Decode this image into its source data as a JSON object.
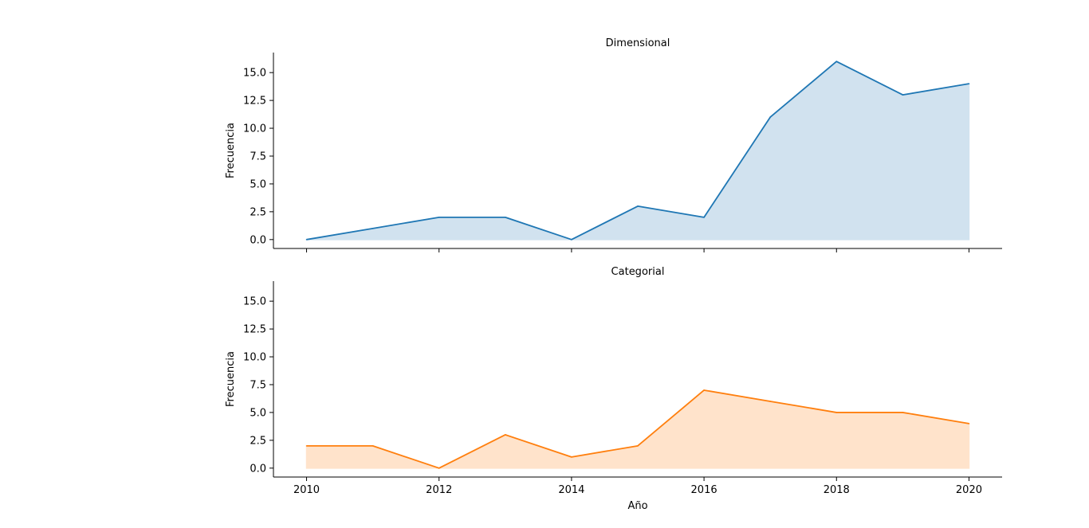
{
  "chart_data": [
    {
      "type": "area",
      "title": "Dimensional",
      "xlabel": "",
      "ylabel": "Frecuencia",
      "x": [
        2010,
        2011,
        2012,
        2013,
        2014,
        2015,
        2016,
        2017,
        2018,
        2019,
        2020
      ],
      "values": [
        0,
        1,
        2,
        2,
        0,
        3,
        2,
        11,
        16,
        13,
        14
      ],
      "xlim": [
        2009.5,
        2020.5
      ],
      "ylim": [
        -0.8,
        16.8
      ],
      "xticks": [
        2010,
        2012,
        2014,
        2016,
        2018,
        2020
      ],
      "xtick_labels_visible": false,
      "yticks": [
        0.0,
        2.5,
        5.0,
        7.5,
        10.0,
        12.5,
        15.0
      ],
      "ytick_labels": [
        "0.0",
        "2.5",
        "5.0",
        "7.5",
        "10.0",
        "12.5",
        "15.0"
      ],
      "color": "#1f77b4",
      "fill_color": "#d1e2ef",
      "grid": false,
      "spines": "left-bottom"
    },
    {
      "type": "area",
      "title": "Categorial",
      "xlabel": "Año",
      "ylabel": "Frecuencia",
      "x": [
        2010,
        2011,
        2012,
        2013,
        2014,
        2015,
        2016,
        2017,
        2018,
        2019,
        2020
      ],
      "values": [
        2,
        2,
        0,
        3,
        1,
        2,
        7,
        6,
        5,
        5,
        4
      ],
      "xlim": [
        2009.5,
        2020.5
      ],
      "ylim": [
        -0.8,
        16.8
      ],
      "xticks": [
        2010,
        2012,
        2014,
        2016,
        2018,
        2020
      ],
      "xtick_labels": [
        "2010",
        "2012",
        "2014",
        "2016",
        "2018",
        "2020"
      ],
      "xtick_labels_visible": true,
      "yticks": [
        0.0,
        2.5,
        5.0,
        7.5,
        10.0,
        12.5,
        15.0
      ],
      "ytick_labels": [
        "0.0",
        "2.5",
        "5.0",
        "7.5",
        "10.0",
        "12.5",
        "15.0"
      ],
      "color": "#ff7f0e",
      "fill_color": "#ffe3cb",
      "grid": false,
      "spines": "left-bottom"
    }
  ]
}
